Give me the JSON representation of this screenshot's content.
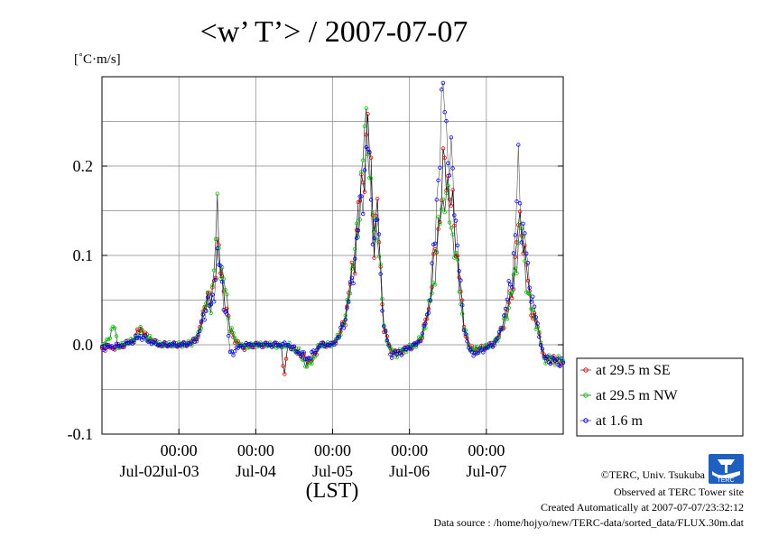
{
  "chart_data": {
    "type": "line",
    "title": "<w’ T’> / 2007-07-07",
    "ylabel": "[˚C·m/s]",
    "xlabel": "(LST)",
    "ylim": [
      -0.1,
      0.3
    ],
    "yticks": [
      -0.1,
      0.0,
      0.1,
      0.2
    ],
    "ytick_labels": [
      "-0.1",
      "0.0",
      "0.1",
      "0.2"
    ],
    "xlim": [
      0,
      144
    ],
    "xticks": [
      24,
      48,
      72,
      96,
      120
    ],
    "xtick_labels": [
      "00:00",
      "00:00",
      "00:00",
      "00:00",
      "00:00"
    ],
    "day_labels": [
      "Jul-02",
      "Jul-03",
      "Jul-04",
      "Jul-05",
      "Jul-06",
      "Jul-07"
    ],
    "x_unit": "hours since Jul-01 12:00 LST",
    "grid": true,
    "legend_position": "right",
    "series": [
      {
        "name": "at 29.5 m SE",
        "color": "#ff0000",
        "anchors": [
          [
            0,
            -0.004
          ],
          [
            6,
            -0.002
          ],
          [
            10,
            0.005
          ],
          [
            12,
            0.02
          ],
          [
            14,
            0.008
          ],
          [
            18,
            0.0
          ],
          [
            22,
            0.0
          ],
          [
            25,
            0.0
          ],
          [
            28,
            0.002
          ],
          [
            30,
            0.01
          ],
          [
            32,
            0.04
          ],
          [
            33,
            0.06
          ],
          [
            34,
            0.045
          ],
          [
            35,
            0.07
          ],
          [
            36,
            0.12
          ],
          [
            37,
            0.08
          ],
          [
            38,
            0.06
          ],
          [
            39,
            0.04
          ],
          [
            40,
            0.015
          ],
          [
            42,
            0.003
          ],
          [
            44,
            -0.003
          ],
          [
            48,
            0.0
          ],
          [
            52,
            0.0
          ],
          [
            56,
            0.0
          ],
          [
            57,
            -0.04
          ],
          [
            58,
            0.0
          ],
          [
            60,
            -0.005
          ],
          [
            62,
            -0.01
          ],
          [
            64,
            -0.02
          ],
          [
            66,
            -0.015
          ],
          [
            68,
            0.0
          ],
          [
            72,
            0.0
          ],
          [
            74,
            0.01
          ],
          [
            76,
            0.03
          ],
          [
            78,
            0.08
          ],
          [
            79,
            0.1
          ],
          [
            80,
            0.15
          ],
          [
            81,
            0.17
          ],
          [
            82,
            0.21
          ],
          [
            83,
            0.24
          ],
          [
            84,
            0.19
          ],
          [
            85,
            0.12
          ],
          [
            86,
            0.15
          ],
          [
            87,
            0.08
          ],
          [
            88,
            0.02
          ],
          [
            90,
            -0.005
          ],
          [
            92,
            -0.01
          ],
          [
            96,
            -0.003
          ],
          [
            98,
            0.0
          ],
          [
            100,
            0.01
          ],
          [
            102,
            0.04
          ],
          [
            104,
            0.1
          ],
          [
            105,
            0.13
          ],
          [
            106,
            0.17
          ],
          [
            107,
            0.2
          ],
          [
            108,
            0.19
          ],
          [
            109,
            0.16
          ],
          [
            110,
            0.13
          ],
          [
            111,
            0.1
          ],
          [
            112,
            0.06
          ],
          [
            113,
            0.02
          ],
          [
            115,
            -0.005
          ],
          [
            118,
            -0.005
          ],
          [
            120,
            -0.002
          ],
          [
            122,
            0.0
          ],
          [
            124,
            0.01
          ],
          [
            126,
            0.03
          ],
          [
            128,
            0.06
          ],
          [
            129,
            0.09
          ],
          [
            130,
            0.13
          ],
          [
            131,
            0.14
          ],
          [
            132,
            0.1
          ],
          [
            133,
            0.07
          ],
          [
            134,
            0.04
          ],
          [
            136,
            0.02
          ],
          [
            138,
            -0.015
          ],
          [
            144,
            -0.02
          ]
        ]
      },
      {
        "name": "at 29.5 m NW",
        "color": "#00cc00",
        "anchors": [
          [
            0,
            -0.004
          ],
          [
            4,
            0.02
          ],
          [
            5,
            -0.002
          ],
          [
            10,
            0.005
          ],
          [
            12,
            0.015
          ],
          [
            14,
            0.008
          ],
          [
            18,
            0.0
          ],
          [
            22,
            0.0
          ],
          [
            25,
            0.0
          ],
          [
            28,
            0.002
          ],
          [
            30,
            0.01
          ],
          [
            32,
            0.04
          ],
          [
            33,
            0.05
          ],
          [
            34,
            0.045
          ],
          [
            35,
            0.08
          ],
          [
            36,
            0.15
          ],
          [
            37,
            0.09
          ],
          [
            38,
            0.07
          ],
          [
            39,
            0.05
          ],
          [
            40,
            0.02
          ],
          [
            42,
            0.003
          ],
          [
            44,
            -0.002
          ],
          [
            48,
            0.0
          ],
          [
            52,
            0.0
          ],
          [
            56,
            -0.002
          ],
          [
            58,
            0.0
          ],
          [
            60,
            -0.005
          ],
          [
            62,
            -0.01
          ],
          [
            64,
            -0.025
          ],
          [
            66,
            -0.015
          ],
          [
            68,
            0.0
          ],
          [
            72,
            0.0
          ],
          [
            74,
            0.01
          ],
          [
            76,
            0.03
          ],
          [
            78,
            0.08
          ],
          [
            79,
            0.1
          ],
          [
            80,
            0.14
          ],
          [
            81,
            0.18
          ],
          [
            82,
            0.23
          ],
          [
            83,
            0.25
          ],
          [
            84,
            0.17
          ],
          [
            85,
            0.12
          ],
          [
            86,
            0.14
          ],
          [
            87,
            0.08
          ],
          [
            88,
            0.02
          ],
          [
            90,
            -0.005
          ],
          [
            92,
            -0.01
          ],
          [
            96,
            -0.003
          ],
          [
            98,
            0.0
          ],
          [
            100,
            0.01
          ],
          [
            102,
            0.04
          ],
          [
            104,
            0.08
          ],
          [
            105,
            0.12
          ],
          [
            106,
            0.16
          ],
          [
            107,
            0.17
          ],
          [
            108,
            0.15
          ],
          [
            109,
            0.14
          ],
          [
            110,
            0.11
          ],
          [
            111,
            0.08
          ],
          [
            112,
            0.05
          ],
          [
            113,
            0.02
          ],
          [
            115,
            -0.005
          ],
          [
            118,
            -0.005
          ],
          [
            120,
            -0.002
          ],
          [
            122,
            0.0
          ],
          [
            124,
            0.01
          ],
          [
            126,
            0.03
          ],
          [
            128,
            0.06
          ],
          [
            129,
            0.08
          ],
          [
            130,
            0.12
          ],
          [
            131,
            0.13
          ],
          [
            132,
            0.09
          ],
          [
            133,
            0.06
          ],
          [
            134,
            0.04
          ],
          [
            136,
            0.02
          ],
          [
            138,
            -0.015
          ],
          [
            144,
            -0.018
          ]
        ]
      },
      {
        "name": "at 1.6 m",
        "color": "#0000ff",
        "anchors": [
          [
            0,
            -0.003
          ],
          [
            6,
            -0.001
          ],
          [
            10,
            0.005
          ],
          [
            12,
            0.01
          ],
          [
            14,
            0.005
          ],
          [
            18,
            0.0
          ],
          [
            22,
            0.0
          ],
          [
            25,
            0.0
          ],
          [
            28,
            0.002
          ],
          [
            30,
            0.01
          ],
          [
            32,
            0.035
          ],
          [
            33,
            0.05
          ],
          [
            34,
            0.04
          ],
          [
            35,
            0.06
          ],
          [
            36,
            0.1
          ],
          [
            37,
            0.08
          ],
          [
            38,
            0.05
          ],
          [
            39,
            0.03
          ],
          [
            40,
            -0.01
          ],
          [
            42,
            -0.005
          ],
          [
            44,
            0.0
          ],
          [
            48,
            0.0
          ],
          [
            52,
            0.0
          ],
          [
            56,
            0.0
          ],
          [
            58,
            0.0
          ],
          [
            60,
            -0.005
          ],
          [
            62,
            -0.01
          ],
          [
            64,
            -0.015
          ],
          [
            66,
            -0.01
          ],
          [
            68,
            0.0
          ],
          [
            72,
            0.0
          ],
          [
            74,
            0.01
          ],
          [
            76,
            0.03
          ],
          [
            78,
            0.07
          ],
          [
            79,
            0.1
          ],
          [
            80,
            0.13
          ],
          [
            81,
            0.16
          ],
          [
            82,
            0.2
          ],
          [
            83,
            0.22
          ],
          [
            84,
            0.16
          ],
          [
            85,
            0.12
          ],
          [
            86,
            0.14
          ],
          [
            87,
            0.08
          ],
          [
            88,
            0.02
          ],
          [
            90,
            -0.01
          ],
          [
            92,
            -0.01
          ],
          [
            96,
            -0.003
          ],
          [
            98,
            0.0
          ],
          [
            100,
            0.01
          ],
          [
            102,
            0.04
          ],
          [
            104,
            0.12
          ],
          [
            105,
            0.2
          ],
          [
            106,
            0.25
          ],
          [
            107,
            0.28
          ],
          [
            108,
            0.22
          ],
          [
            109,
            0.2
          ],
          [
            110,
            0.16
          ],
          [
            111,
            0.12
          ],
          [
            112,
            0.06
          ],
          [
            113,
            0.02
          ],
          [
            115,
            -0.01
          ],
          [
            118,
            -0.008
          ],
          [
            120,
            -0.003
          ],
          [
            122,
            0.0
          ],
          [
            124,
            0.01
          ],
          [
            126,
            0.04
          ],
          [
            128,
            0.08
          ],
          [
            129,
            0.12
          ],
          [
            130,
            0.195
          ],
          [
            131,
            0.14
          ],
          [
            132,
            0.12
          ],
          [
            133,
            0.08
          ],
          [
            134,
            0.06
          ],
          [
            136,
            0.02
          ],
          [
            138,
            -0.015
          ],
          [
            144,
            -0.02
          ]
        ]
      }
    ]
  },
  "footer": {
    "copyright": "©TERC, Univ. Tsukuba",
    "observed": "Observed at TERC Tower site",
    "created": "Created Automatically at 2007-07-07/23:32:12",
    "source": "Data source : /home/hojyo/new/TERC-data/sorted_data/FLUX.30m.dat"
  },
  "logo": {
    "text": "TERC",
    "color": "#1e5fbf"
  }
}
